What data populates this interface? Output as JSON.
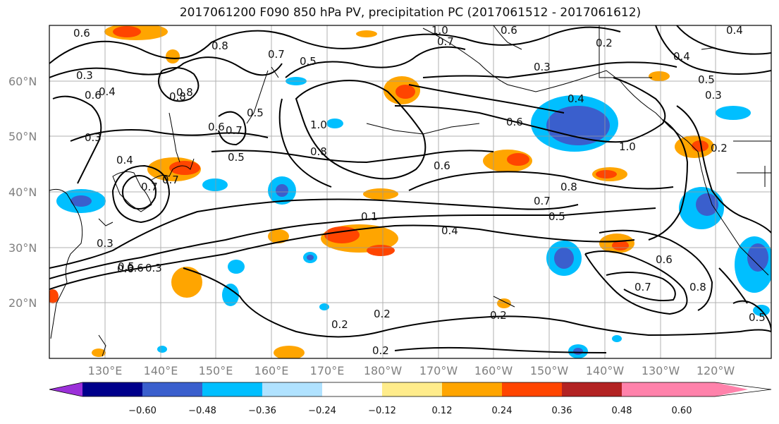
{
  "title": "2017061200 F090 850 hPa PV, precipitation PC (2017061512 - 2017061612)",
  "lat_labels": [
    "60°N",
    "50°N",
    "40°N",
    "30°N",
    "20°N"
  ],
  "lon_labels": [
    "130°E",
    "140°E",
    "150°E",
    "160°E",
    "170°E",
    "180°W",
    "170°W",
    "160°W",
    "150°W",
    "140°W",
    "130°W",
    "120°W"
  ],
  "map": {
    "lon_range_east": [
      120,
      250
    ],
    "lat_range": [
      10,
      70
    ],
    "grid": true,
    "pv_contour_labels": [
      "0.6",
      "0.8",
      "0.7",
      "0.5",
      "1.0",
      "0.7",
      "0.6",
      "0.2",
      "0.4",
      "0.3",
      "0.3",
      "0.4",
      "0.5",
      "0.8",
      "0.7",
      "0.6",
      "0.5",
      "0.6",
      "0.4",
      "0.8",
      "1.0",
      "0.3",
      "0.4",
      "0.5",
      "0.6",
      "0.7",
      "0.8",
      "1.0",
      "0.2",
      "0.3",
      "0.6",
      "0.3",
      "0.7",
      "0.4",
      "0.5",
      "0.6",
      "0.8",
      "0.7",
      "0.4",
      "0.5",
      "0.2",
      "0.2",
      "0.2",
      "0.2",
      "0.8",
      "0.6",
      "0.7",
      "0.3",
      "0.5",
      "0.1",
      "0.6"
    ]
  },
  "colorbar": {
    "ticks": [
      "−0.60",
      "−0.48",
      "−0.36",
      "−0.24",
      "−0.12",
      "0.12",
      "0.24",
      "0.36",
      "0.48",
      "0.60"
    ],
    "colors": [
      "#9b30d9",
      "#00008b",
      "#3a5fcd",
      "#00bfff",
      "#b0e2ff",
      "#ffffff",
      "#ffec8b",
      "#ffa500",
      "#ff4500",
      "#b22222",
      "#ff82ab"
    ],
    "extend": "both"
  }
}
